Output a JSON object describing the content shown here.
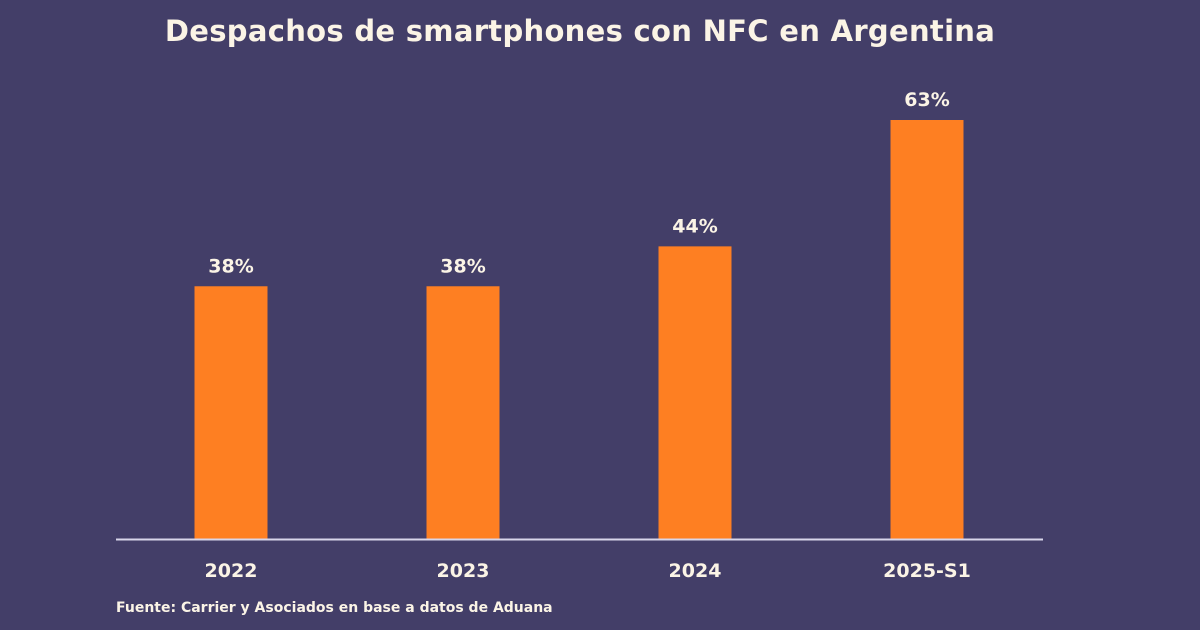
{
  "chart_data": {
    "type": "bar",
    "title": "Despachos de smartphones con NFC en Argentina",
    "categories": [
      "2022",
      "2023",
      "2024",
      "2025-S1"
    ],
    "values": [
      38,
      38,
      44,
      63
    ],
    "data_labels": [
      "38%",
      "38%",
      "44%",
      "63%"
    ],
    "unit": "%",
    "ylim": [
      0,
      63
    ],
    "grid": false,
    "y_axis_visible": false,
    "colors": {
      "bar": "#fe7f22",
      "background": "#433e68",
      "text": "#fbf4e6",
      "axis": "#d8d6ea"
    }
  },
  "source": "Fuente: Carrier y Asociados en base a datos de Aduana"
}
